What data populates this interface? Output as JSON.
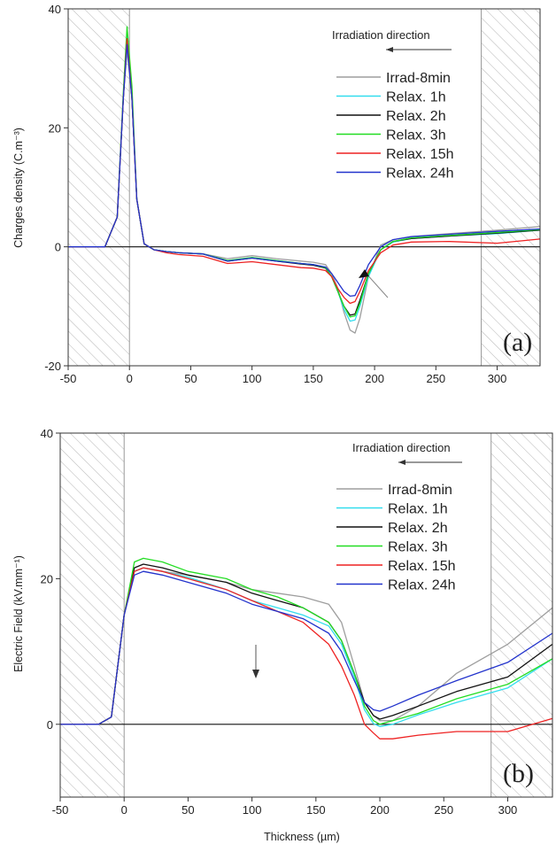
{
  "chart_data": [
    {
      "type": "line",
      "panel_label": "(a)",
      "ylabel": "Charges density (C.m⁻³)",
      "xlabel": "",
      "xlim": [
        -50,
        335
      ],
      "ylim": [
        -20,
        40
      ],
      "xticks": [
        -50,
        0,
        50,
        100,
        150,
        200,
        250,
        300
      ],
      "yticks": [
        -20,
        0,
        20,
        40
      ],
      "annotation": "Irradiation direction",
      "shaded_regions": [
        [
          -50,
          0
        ],
        [
          287,
          335
        ]
      ],
      "legend_position": "top-right",
      "series": [
        {
          "name": "Irrad-8min",
          "color": "#9e9e9e",
          "x": [
            -50,
            -20,
            -10,
            -5,
            -2,
            2,
            6,
            12,
            20,
            30,
            40,
            60,
            80,
            100,
            120,
            140,
            150,
            160,
            165,
            170,
            175,
            180,
            184,
            188,
            195,
            205,
            215,
            230,
            260,
            300,
            335
          ],
          "y": [
            0,
            0,
            5,
            25,
            33,
            25,
            8,
            0.5,
            -0.5,
            -0.8,
            -1,
            -1.2,
            -2,
            -1.5,
            -2,
            -2.4,
            -2.6,
            -3,
            -4.5,
            -7,
            -11,
            -14,
            -14.5,
            -12,
            -5,
            0.3,
            1.2,
            1.7,
            2.2,
            2.8,
            3.4
          ]
        },
        {
          "name": "Relax. 1h",
          "color": "#33ddee",
          "x": [
            -50,
            -20,
            -10,
            -5,
            -2,
            2,
            6,
            12,
            20,
            30,
            40,
            60,
            80,
            100,
            120,
            140,
            150,
            160,
            165,
            170,
            175,
            180,
            184,
            188,
            195,
            205,
            215,
            230,
            260,
            300,
            335
          ],
          "y": [
            0,
            0,
            5,
            25,
            36,
            26,
            8,
            0.5,
            -0.5,
            -0.8,
            -1,
            -1.2,
            -2.3,
            -1.8,
            -2.3,
            -2.8,
            -3,
            -3.5,
            -5,
            -7.5,
            -10.5,
            -12.5,
            -12.3,
            -10,
            -5,
            -0.5,
            0.8,
            1.4,
            1.8,
            2.2,
            2.8
          ]
        },
        {
          "name": "Relax. 2h",
          "color": "#111111",
          "x": [
            -50,
            -20,
            -10,
            -5,
            -2,
            2,
            6,
            12,
            20,
            30,
            40,
            60,
            80,
            100,
            120,
            140,
            150,
            160,
            165,
            170,
            175,
            180,
            184,
            188,
            195,
            205,
            215,
            230,
            260,
            300,
            335
          ],
          "y": [
            0,
            0,
            5,
            25,
            35,
            25,
            8,
            0.5,
            -0.5,
            -0.8,
            -1,
            -1.2,
            -2.4,
            -1.9,
            -2.4,
            -2.9,
            -3.1,
            -3.6,
            -5,
            -7.5,
            -10,
            -11.5,
            -11.3,
            -9,
            -4.5,
            -0.5,
            0.9,
            1.4,
            1.8,
            2.3,
            2.8
          ]
        },
        {
          "name": "Relax. 3h",
          "color": "#22dd22",
          "x": [
            -50,
            -20,
            -10,
            -5,
            -2,
            2,
            6,
            12,
            20,
            30,
            40,
            60,
            80,
            100,
            120,
            140,
            150,
            160,
            165,
            170,
            175,
            180,
            184,
            188,
            195,
            205,
            215,
            230,
            260,
            300,
            335
          ],
          "y": [
            0,
            0,
            5,
            26,
            37,
            27,
            8,
            0.5,
            -0.5,
            -0.8,
            -1,
            -1.2,
            -2.3,
            -1.8,
            -2.3,
            -2.8,
            -3,
            -3.5,
            -5,
            -7.5,
            -10,
            -11.8,
            -11.6,
            -9.5,
            -4.5,
            -0.5,
            0.9,
            1.5,
            1.9,
            2.4,
            2.9
          ]
        },
        {
          "name": "Relax. 15h",
          "color": "#ee2222",
          "x": [
            -50,
            -20,
            -10,
            -5,
            -2,
            2,
            6,
            12,
            20,
            30,
            40,
            60,
            80,
            100,
            120,
            140,
            150,
            160,
            165,
            170,
            175,
            180,
            184,
            188,
            195,
            205,
            215,
            230,
            260,
            300,
            335
          ],
          "y": [
            0,
            0,
            5,
            25,
            35,
            25,
            8,
            0.5,
            -0.5,
            -1,
            -1.3,
            -1.6,
            -2.8,
            -2.5,
            -3,
            -3.5,
            -3.6,
            -4,
            -5,
            -7,
            -8.5,
            -9.5,
            -9.2,
            -7.5,
            -4,
            -1,
            0.3,
            0.8,
            0.9,
            0.6,
            1.3
          ]
        },
        {
          "name": "Relax. 24h",
          "color": "#2233cc",
          "x": [
            -50,
            -20,
            -10,
            -5,
            -2,
            2,
            6,
            12,
            20,
            30,
            40,
            60,
            80,
            100,
            120,
            140,
            150,
            160,
            165,
            170,
            175,
            180,
            184,
            188,
            195,
            205,
            215,
            230,
            260,
            300,
            335
          ],
          "y": [
            0,
            0,
            5,
            25,
            34,
            25,
            8,
            0.5,
            -0.5,
            -0.8,
            -1,
            -1.2,
            -2.4,
            -1.9,
            -2.4,
            -2.8,
            -3,
            -3.4,
            -4.5,
            -6,
            -7.5,
            -8.3,
            -8.2,
            -6.5,
            -3,
            0,
            1.2,
            1.7,
            2.1,
            2.6,
            3
          ]
        }
      ]
    },
    {
      "type": "line",
      "panel_label": "(b)",
      "ylabel": "Electric Field  (kV.mm⁻¹)",
      "xlabel": "Thickness (µm)",
      "xlim": [
        -50,
        335
      ],
      "ylim": [
        -10,
        40
      ],
      "xticks": [
        -50,
        0,
        50,
        100,
        150,
        200,
        250,
        300
      ],
      "yticks": [
        0,
        20,
        40
      ],
      "annotation": "Irradiation direction",
      "shaded_regions": [
        [
          -50,
          0
        ],
        [
          287,
          335
        ]
      ],
      "legend_position": "top-right",
      "series": [
        {
          "name": "Irrad-8min",
          "color": "#9e9e9e",
          "x": [
            -50,
            -20,
            -10,
            0,
            8,
            15,
            30,
            50,
            80,
            100,
            120,
            140,
            160,
            170,
            180,
            188,
            195,
            200,
            210,
            230,
            260,
            300,
            335
          ],
          "y": [
            0,
            0,
            1,
            15,
            21,
            21.5,
            21,
            20.5,
            19.5,
            18.5,
            18,
            17.5,
            16.5,
            14,
            8,
            3,
            1.2,
            0.5,
            0.5,
            2.5,
            7,
            11,
            16
          ]
        },
        {
          "name": "Relax. 1h",
          "color": "#33ddee",
          "x": [
            -50,
            -20,
            -10,
            0,
            8,
            15,
            30,
            50,
            80,
            100,
            120,
            140,
            160,
            170,
            180,
            188,
            195,
            200,
            210,
            230,
            260,
            300,
            335
          ],
          "y": [
            0,
            0,
            1,
            15,
            21,
            21.5,
            21,
            20.2,
            18.5,
            17,
            16,
            15,
            13.5,
            11,
            6.5,
            2,
            0.1,
            -0.3,
            0,
            1.3,
            3,
            5,
            9
          ]
        },
        {
          "name": "Relax. 2h",
          "color": "#111111",
          "x": [
            -50,
            -20,
            -10,
            0,
            8,
            15,
            30,
            50,
            80,
            100,
            120,
            140,
            160,
            170,
            180,
            188,
            195,
            200,
            210,
            230,
            260,
            300,
            335
          ],
          "y": [
            0,
            0,
            1,
            15,
            21.5,
            22,
            21.5,
            20.5,
            19.5,
            18,
            17,
            16,
            14,
            11.5,
            7,
            3,
            1.2,
            0.7,
            1.2,
            2.5,
            4.5,
            6.5,
            11
          ]
        },
        {
          "name": "Relax. 3h",
          "color": "#22dd22",
          "x": [
            -50,
            -20,
            -10,
            0,
            8,
            15,
            30,
            50,
            80,
            100,
            120,
            140,
            160,
            170,
            180,
            188,
            195,
            200,
            210,
            230,
            260,
            300,
            335
          ],
          "y": [
            0,
            0,
            1,
            15,
            22.3,
            22.8,
            22.3,
            21,
            20,
            18.5,
            17.5,
            16,
            14,
            11.5,
            7,
            2.5,
            0.5,
            0,
            0.5,
            1.5,
            3.5,
            5.5,
            9
          ]
        },
        {
          "name": "Relax. 15h",
          "color": "#ee2222",
          "x": [
            -50,
            -20,
            -10,
            0,
            8,
            15,
            30,
            50,
            80,
            100,
            120,
            140,
            160,
            170,
            180,
            188,
            195,
            200,
            210,
            230,
            260,
            300,
            335
          ],
          "y": [
            0,
            0,
            1,
            15,
            21,
            21.5,
            21,
            20,
            18.5,
            17,
            15.5,
            14,
            11,
            8,
            4,
            0,
            -1.2,
            -2,
            -2,
            -1.5,
            -1,
            -1,
            0.8
          ]
        },
        {
          "name": "Relax. 24h",
          "color": "#2233cc",
          "x": [
            -50,
            -20,
            -10,
            0,
            8,
            15,
            30,
            50,
            80,
            100,
            120,
            140,
            160,
            170,
            180,
            188,
            195,
            200,
            210,
            230,
            260,
            300,
            335
          ],
          "y": [
            0,
            0,
            1,
            15,
            20.5,
            21,
            20.5,
            19.5,
            18,
            16.5,
            15.5,
            14.5,
            12.5,
            10,
            6,
            3,
            2,
            1.8,
            2.5,
            4,
            6,
            8.5,
            12.5
          ]
        }
      ]
    }
  ]
}
